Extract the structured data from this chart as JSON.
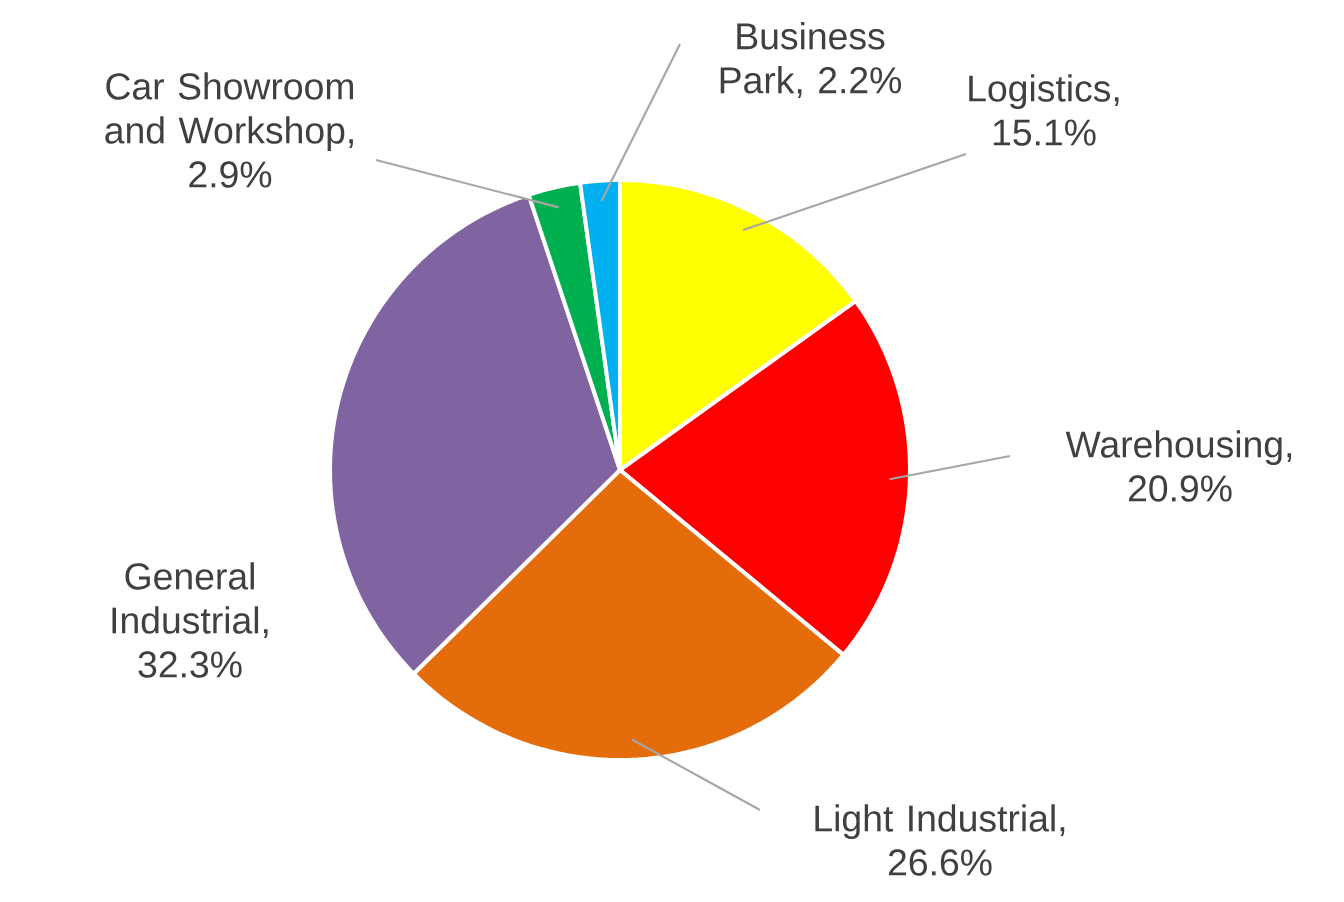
{
  "chart_data": {
    "type": "pie",
    "categories": [
      "Logistics, 15.1%",
      "Warehousing, 20.9%",
      "Light Industrial, 26.6%",
      "General Industrial, 32.3%",
      "Car Showroom and Workshop, 2.9%",
      "Business Park, 2.2%"
    ],
    "values": [
      15.1,
      20.9,
      26.6,
      32.3,
      2.9,
      2.2
    ],
    "colors": [
      "#ffff00",
      "#ff0000",
      "#e46c0a",
      "#8064a2",
      "#00b050",
      "#00b0f0"
    ]
  }
}
